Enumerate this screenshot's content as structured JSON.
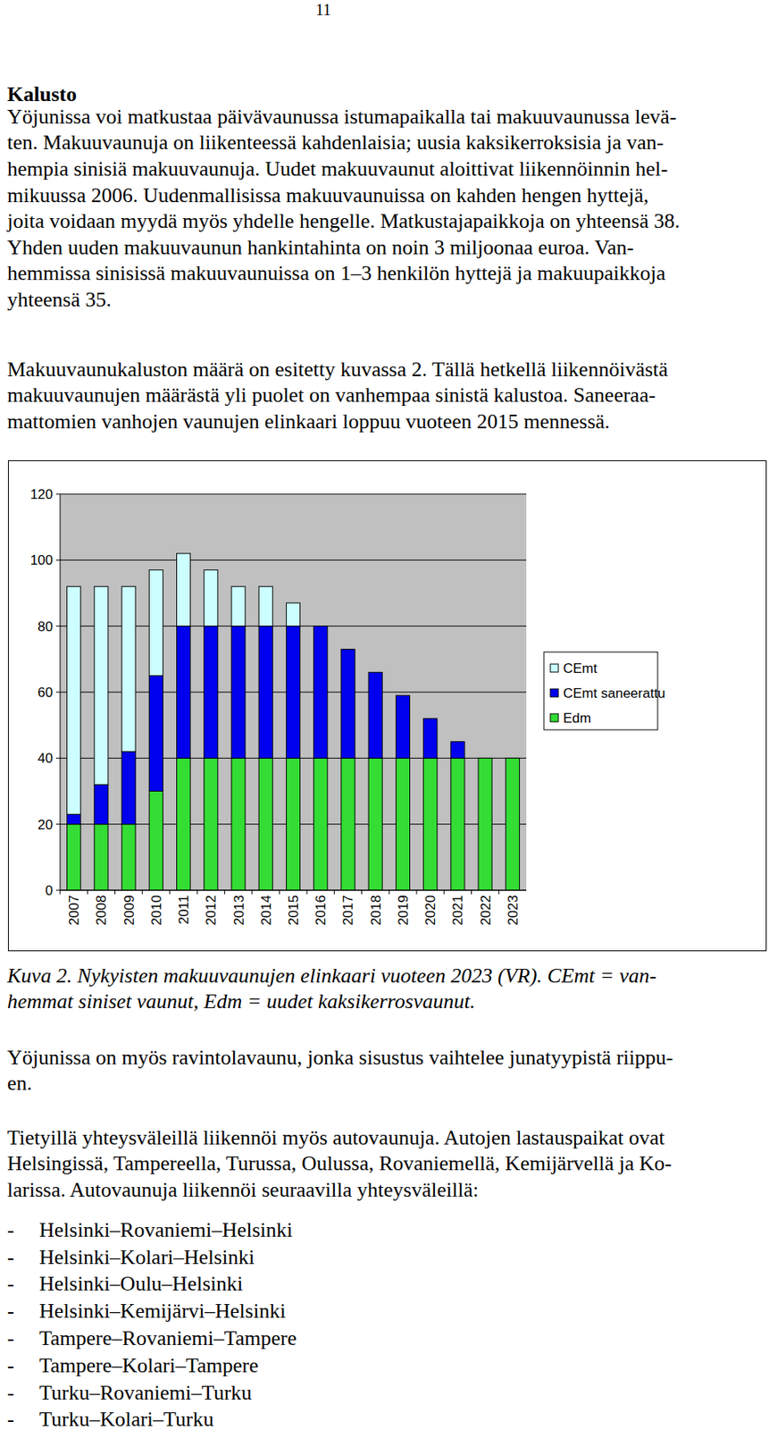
{
  "page_number": "11",
  "heading": "Kalusto",
  "paragraphs_before": [
    [
      "Yöjunissa voi matkustaa päivävaunussa istumapaikalla tai makuuvaunussa levä-",
      "ten. Makuuvaunuja on liikenteessä kahdenlaisia; uusia kaksikerroksisia ja van-",
      "hempia sinisiä makuuvaunuja. Uudet makuuvaunut aloittivat liikennöinnin hel-",
      "mikuussa 2006. Uudenmallisissa makuuvaunuissa on kahden hengen hyttejä,",
      "joita voidaan myydä myös yhdelle hengelle. Matkustajapaikkoja on yhteensä 38.",
      "Yhden uuden makuuvaunun hankintahinta on noin 3 miljoonaa euroa. Van-",
      "hemmissa sinisissä makuuvaunuissa on 1–3 henkilön hyttejä ja makuupaikkoja",
      "yhteensä 35."
    ],
    [
      "Makuuvaunukaluston määrä on esitetty kuvassa 2. Tällä hetkellä liikennöivästä",
      "makuuvaunujen määrästä yli puolet on vanhempaa sinistä kalustoa. Saneeraa-",
      "mattomien vanhojen vaunujen elinkaari loppuu vuoteen 2015 mennessä."
    ]
  ],
  "chart_data": {
    "type": "bar",
    "stacked": true,
    "categories": [
      "2007",
      "2008",
      "2009",
      "2010",
      "2011",
      "2012",
      "2013",
      "2014",
      "2015",
      "2016",
      "2017",
      "2018",
      "2019",
      "2020",
      "2021",
      "2022",
      "2023"
    ],
    "series": [
      {
        "name": "CEmt",
        "color": "#ccffff",
        "values": [
          69,
          60,
          50,
          32,
          22,
          17,
          12,
          12,
          7,
          0,
          0,
          0,
          0,
          0,
          0,
          0,
          0
        ]
      },
      {
        "name": "CEmt saneerattu",
        "color": "#0000ee",
        "values": [
          3,
          12,
          22,
          35,
          40,
          40,
          40,
          40,
          40,
          40,
          33,
          26,
          19,
          12,
          5,
          0,
          0
        ]
      },
      {
        "name": "Edm",
        "color": "#33dd33",
        "values": [
          20,
          20,
          20,
          30,
          40,
          40,
          40,
          40,
          40,
          40,
          40,
          40,
          40,
          40,
          40,
          40,
          40
        ]
      }
    ],
    "ylim": [
      0,
      120
    ],
    "yticks": [
      0,
      20,
      40,
      60,
      80,
      100,
      120
    ],
    "grid": true,
    "legend": "right"
  },
  "caption": [
    "Kuva 2. Nykyisten makuuvaunujen elinkaari vuoteen 2023 (VR). CEmt = van-",
    "hemmat siniset vaunut, Edm = uudet kaksikerrosvaunut."
  ],
  "paragraphs_after": [
    [
      "Yöjunissa on myös ravintolavaunu, jonka sisustus vaihtelee junatyypistä riippu-",
      "en."
    ],
    [
      "Tietyillä yhteysväleillä liikennöi myös autovaunuja. Autojen lastauspaikat ovat",
      "Helsingissä, Tampereella, Turussa, Oulussa, Rovaniemellä, Kemijärvellä ja Ko-",
      "larissa. Autovaunuja liikennöi seuraavilla yhteysväleillä:"
    ]
  ],
  "list_marker": "-",
  "list": [
    "Helsinki–Rovaniemi–Helsinki",
    "Helsinki–Kolari–Helsinki",
    "Helsinki–Oulu–Helsinki",
    "Helsinki–Kemijärvi–Helsinki",
    "Tampere–Rovaniemi–Tampere",
    "Tampere–Kolari–Tampere",
    "Turku–Rovaniemi–Turku",
    "Turku–Kolari–Turku"
  ]
}
